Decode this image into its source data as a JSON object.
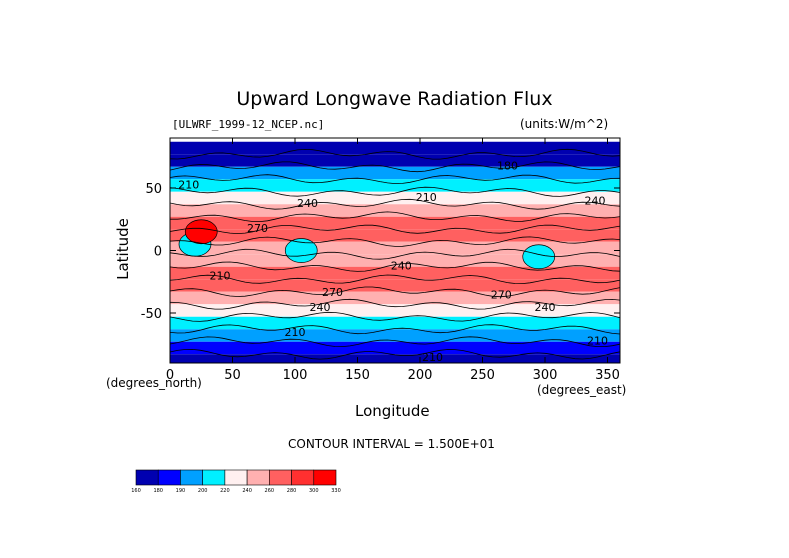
{
  "chart_data": {
    "type": "heatmap",
    "title": "Upward Longwave Radiation Flux",
    "file_label": "[ULWRF_1999-12_NCEP.nc]",
    "units_label": "(units:W/m^2)",
    "xlabel": "Longitude",
    "ylabel": "Latitude",
    "x_units_label": "(degrees_east)",
    "y_units_label": "(degrees_north)",
    "contour_interval": "CONTOUR INTERVAL = 1.500E+01",
    "xlim": [
      0,
      360
    ],
    "ylim": [
      -90,
      90
    ],
    "x_ticks": [
      0,
      50,
      100,
      150,
      200,
      250,
      300,
      350
    ],
    "y_ticks": [
      50,
      0,
      -50
    ],
    "colorbar": {
      "levels": [
        160,
        180,
        190,
        200,
        220,
        240,
        260,
        280,
        300,
        330
      ],
      "colors": [
        "#0000b0",
        "#0000ff",
        "#00a0ff",
        "#00f0ff",
        "#fff0f0",
        "#ffb0b0",
        "#ff6060",
        "#ff3030",
        "#ff0000"
      ]
    },
    "zonal_mean_rows": [
      {
        "lat": 82,
        "value": 165
      },
      {
        "lat": 72,
        "value": 175
      },
      {
        "lat": 62,
        "value": 190
      },
      {
        "lat": 52,
        "value": 205
      },
      {
        "lat": 42,
        "value": 230
      },
      {
        "lat": 32,
        "value": 255
      },
      {
        "lat": 22,
        "value": 270
      },
      {
        "lat": 12,
        "value": 260
      },
      {
        "lat": 2,
        "value": 250
      },
      {
        "lat": -8,
        "value": 255
      },
      {
        "lat": -18,
        "value": 270
      },
      {
        "lat": -28,
        "value": 262
      },
      {
        "lat": -38,
        "value": 240
      },
      {
        "lat": -48,
        "value": 222
      },
      {
        "lat": -58,
        "value": 210
      },
      {
        "lat": -68,
        "value": 198
      },
      {
        "lat": -78,
        "value": 185
      },
      {
        "lat": -88,
        "value": 175
      }
    ],
    "contour_labels": [
      {
        "text": "180",
        "lon": 270,
        "lat": 68
      },
      {
        "text": "210",
        "lon": 15,
        "lat": 53
      },
      {
        "text": "240",
        "lon": 110,
        "lat": 38
      },
      {
        "text": "210",
        "lon": 205,
        "lat": 43
      },
      {
        "text": "240",
        "lon": 340,
        "lat": 40
      },
      {
        "text": "270",
        "lon": 70,
        "lat": 18
      },
      {
        "text": "210",
        "lon": 40,
        "lat": -20
      },
      {
        "text": "240",
        "lon": 185,
        "lat": -12
      },
      {
        "text": "270",
        "lon": 130,
        "lat": -33
      },
      {
        "text": "240",
        "lon": 120,
        "lat": -45
      },
      {
        "text": "270",
        "lon": 265,
        "lat": -35
      },
      {
        "text": "240",
        "lon": 300,
        "lat": -45
      },
      {
        "text": "210",
        "lon": 100,
        "lat": -65
      },
      {
        "text": "210",
        "lon": 342,
        "lat": -72
      },
      {
        "text": "210",
        "lon": 210,
        "lat": -85
      }
    ],
    "features": [
      {
        "name": "tropical-africa-low",
        "lon": 20,
        "lat": 5,
        "value": 215
      },
      {
        "name": "maritime-continent-low",
        "lon": 105,
        "lat": 0,
        "value": 210
      },
      {
        "name": "amazon-low",
        "lon": 295,
        "lat": -5,
        "value": 205
      },
      {
        "name": "arabian-high",
        "lon": 25,
        "lat": 15,
        "value": 300
      }
    ]
  }
}
